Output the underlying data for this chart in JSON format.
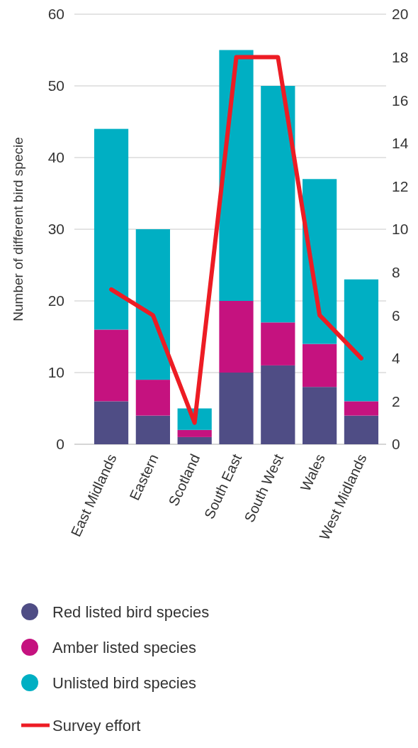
{
  "chart_data": {
    "type": "bar",
    "stacked": true,
    "ylabel": "Number of different bird specie",
    "categories": [
      "East Midlands",
      "Eastern",
      "Scotland",
      "South East",
      "South West",
      "Wales",
      "West Midlands"
    ],
    "series": [
      {
        "name": "Red listed bird species",
        "color": "#4f4d85",
        "values": [
          6,
          4,
          1,
          10,
          11,
          8,
          4
        ]
      },
      {
        "name": "Amber listed species",
        "color": "#c5127f",
        "values": [
          10,
          5,
          1,
          10,
          6,
          6,
          2
        ]
      },
      {
        "name": "Unlisted bird species",
        "color": "#00afc3",
        "values": [
          28,
          21,
          3,
          35,
          33,
          23,
          17
        ]
      },
      {
        "name": "Survey effort",
        "type": "line",
        "axis": "y2",
        "color": "#ed1c24",
        "values": [
          7.2,
          6,
          1,
          18,
          18,
          6,
          4
        ]
      }
    ],
    "ylim": [
      0,
      60
    ],
    "yticks": [
      0,
      10,
      20,
      30,
      40,
      50,
      60
    ],
    "y2lim": [
      0,
      20
    ],
    "y2ticks": [
      0,
      2,
      4,
      6,
      8,
      10,
      12,
      14,
      16,
      18,
      20
    ],
    "grid": "y",
    "legend": "bottom"
  }
}
